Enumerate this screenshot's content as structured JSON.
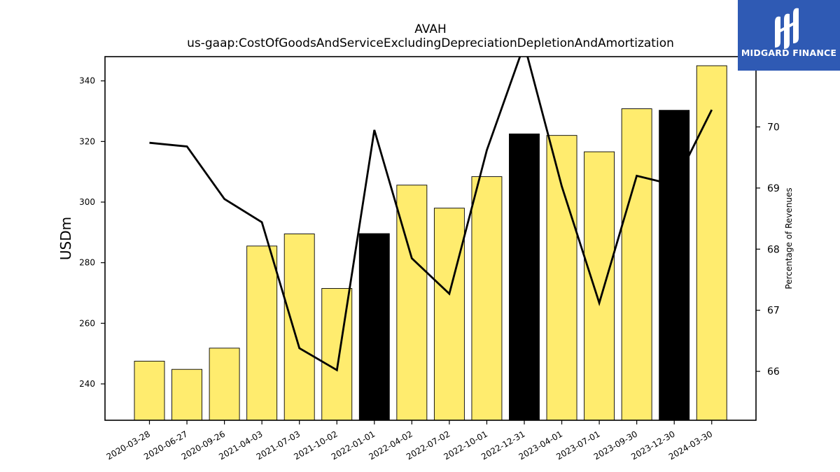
{
  "logo": {
    "text": "MIDGARD FINANCE"
  },
  "colors": {
    "bar_default": "#ffec6e",
    "bar_highlight": "#000000",
    "line": "#000000",
    "logo_bg": "#2f5ab4"
  },
  "chart_data": {
    "type": "bar",
    "title": "AVAH",
    "subtitle": "us-gaap:CostOfGoodsAndServiceExcludingDepreciationDepletionAndAmortization",
    "ylabel": "USDm",
    "y2label": "Percentage of Revenues",
    "categories": [
      "2020-03-28",
      "2020-06-27",
      "2020-09-26",
      "2021-04-03",
      "2021-07-03",
      "2021-10-02",
      "2022-01-01",
      "2022-04-02",
      "2022-07-02",
      "2022-10-01",
      "2022-12-31",
      "2023-04-01",
      "2023-07-01",
      "2023-09-30",
      "2023-12-30",
      "2024-03-30"
    ],
    "ylim": [
      228,
      348
    ],
    "yticks": [
      240,
      260,
      280,
      300,
      320,
      340
    ],
    "y2lim": [
      65.2,
      71.15
    ],
    "y2ticks": [
      66,
      67,
      68,
      69,
      70
    ],
    "series": [
      {
        "type": "bar",
        "values": [
          247.5,
          244.8,
          251.8,
          285.5,
          289.5,
          271.5,
          289.6,
          305.6,
          298.0,
          308.4,
          322.5,
          322.0,
          316.6,
          330.8,
          330.3,
          345.0
        ],
        "highlight": [
          false,
          false,
          false,
          false,
          false,
          false,
          true,
          false,
          false,
          false,
          true,
          false,
          false,
          false,
          true,
          false
        ]
      },
      {
        "type": "line",
        "axis": "right",
        "values": [
          69.74,
          69.68,
          68.82,
          68.44,
          66.38,
          66.02,
          69.95,
          67.85,
          67.27,
          69.62,
          71.35,
          69.03,
          67.12,
          69.2,
          69.05,
          70.28
        ]
      }
    ]
  }
}
